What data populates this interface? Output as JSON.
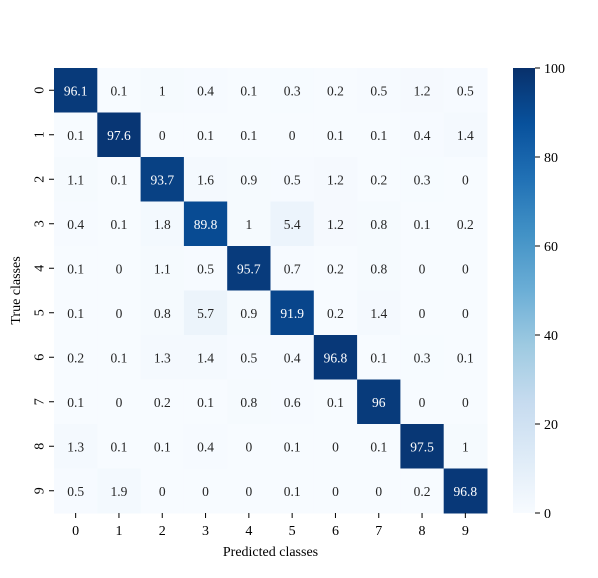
{
  "chart_data": {
    "type": "heatmap",
    "title": "",
    "xlabel": "Predicted classes",
    "ylabel": "True classes",
    "x_categories": [
      "0",
      "1",
      "2",
      "3",
      "4",
      "5",
      "6",
      "7",
      "8",
      "9"
    ],
    "y_categories": [
      "0",
      "1",
      "2",
      "3",
      "4",
      "5",
      "6",
      "7",
      "8",
      "9"
    ],
    "values": [
      [
        96.1,
        0.1,
        1,
        0.4,
        0.1,
        0.3,
        0.2,
        0.5,
        1.2,
        0.5
      ],
      [
        0.1,
        97.6,
        0,
        0.1,
        0.1,
        0,
        0.1,
        0.1,
        0.4,
        1.4
      ],
      [
        1.1,
        0.1,
        93.7,
        1.6,
        0.9,
        0.5,
        1.2,
        0.2,
        0.3,
        0
      ],
      [
        0.4,
        0.1,
        1.8,
        89.8,
        1,
        5.4,
        1.2,
        0.8,
        0.1,
        0.2
      ],
      [
        0.1,
        0,
        1.1,
        0.5,
        95.7,
        0.7,
        0.2,
        0.8,
        0,
        0
      ],
      [
        0.1,
        0,
        0.8,
        5.7,
        0.9,
        91.9,
        0.2,
        1.4,
        0,
        0
      ],
      [
        0.2,
        0.1,
        1.3,
        1.4,
        0.5,
        0.4,
        96.8,
        0.1,
        0.3,
        0.1
      ],
      [
        0.1,
        0,
        0.2,
        0.1,
        0.8,
        0.6,
        0.1,
        96,
        0,
        0
      ],
      [
        1.3,
        0.1,
        0.1,
        0.4,
        0,
        0.1,
        0,
        0.1,
        97.5,
        1
      ],
      [
        0.5,
        1.9,
        0,
        0,
        0,
        0.1,
        0,
        0,
        0.2,
        96.8
      ]
    ],
    "colorbar": {
      "min": 0,
      "max": 100,
      "ticks": [
        0,
        20,
        40,
        60,
        80,
        100
      ],
      "colormap": "Blues"
    },
    "grid": false,
    "legend": "colorbar-right"
  }
}
